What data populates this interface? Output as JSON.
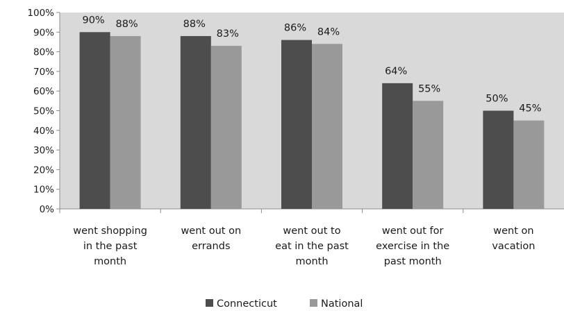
{
  "chart_data": {
    "type": "bar",
    "categories": [
      [
        "went shopping",
        "in the past",
        "month"
      ],
      [
        "went out on",
        "errands"
      ],
      [
        "went out to",
        "eat in the past",
        "month"
      ],
      [
        "went out for",
        "exercise in the",
        "past month"
      ],
      [
        "went on",
        "vacation"
      ]
    ],
    "series": [
      {
        "name": "Connecticut",
        "values": [
          90,
          88,
          86,
          64,
          50
        ],
        "labels": [
          "90%",
          "88%",
          "86%",
          "64%",
          "50%"
        ]
      },
      {
        "name": "National",
        "values": [
          88,
          83,
          84,
          55,
          45
        ],
        "labels": [
          "88%",
          "83%",
          "84%",
          "55%",
          "45%"
        ]
      }
    ],
    "yticks": [
      "0%",
      "10%",
      "20%",
      "30%",
      "40%",
      "50%",
      "60%",
      "70%",
      "80%",
      "90%",
      "100%"
    ],
    "ylim": [
      0,
      100
    ],
    "grid": false,
    "legend": "bottom"
  },
  "colors": {
    "plot_background": "#d9d9d9",
    "connecticut": "#4d4d4d",
    "national": "#999999",
    "axis": "#8c8c8c"
  }
}
